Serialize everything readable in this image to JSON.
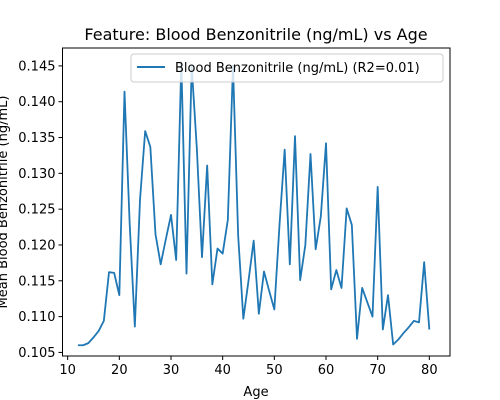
{
  "chart_data": {
    "type": "line",
    "title": "Feature: Blood Benzonitrile (ng/mL) vs Age",
    "xlabel": "Age",
    "ylabel": "Mean Blood Benzonitrile (ng/mL)",
    "xlim": [
      9,
      84
    ],
    "ylim": [
      0.1045,
      0.1475
    ],
    "xticks": [
      10,
      20,
      30,
      40,
      50,
      60,
      70,
      80
    ],
    "yticks": [
      0.105,
      0.11,
      0.115,
      0.12,
      0.125,
      0.13,
      0.135,
      0.14,
      0.145
    ],
    "ytick_labels": [
      "0.105",
      "0.110",
      "0.115",
      "0.120",
      "0.125",
      "0.130",
      "0.135",
      "0.140",
      "0.145"
    ],
    "grid": false,
    "legend_position": "top-right",
    "series": [
      {
        "name": "Blood Benzonitrile (ng/mL) (R2=0.01)",
        "color": "#1f77b4",
        "x": [
          12,
          13,
          14,
          15,
          16,
          17,
          18,
          19,
          20,
          21,
          22,
          23,
          24,
          25,
          26,
          27,
          28,
          29,
          30,
          31,
          32,
          33,
          34,
          35,
          36,
          37,
          38,
          39,
          40,
          41,
          42,
          43,
          44,
          45,
          46,
          47,
          48,
          49,
          50,
          51,
          52,
          53,
          54,
          55,
          56,
          57,
          58,
          59,
          60,
          61,
          62,
          63,
          64,
          65,
          66,
          67,
          68,
          69,
          70,
          71,
          72,
          73,
          74,
          75,
          76,
          77,
          78,
          79,
          80
        ],
        "y": [
          0.106,
          0.106,
          0.1063,
          0.1071,
          0.108,
          0.1094,
          0.1162,
          0.1161,
          0.113,
          0.1414,
          0.123,
          0.1086,
          0.1263,
          0.1359,
          0.1337,
          0.1215,
          0.1173,
          0.1208,
          0.1242,
          0.1179,
          0.1455,
          0.116,
          0.145,
          0.1335,
          0.1183,
          0.1311,
          0.1145,
          0.1195,
          0.1188,
          0.1235,
          0.145,
          0.1213,
          0.1097,
          0.115,
          0.1206,
          0.1104,
          0.1163,
          0.1136,
          0.111,
          0.1228,
          0.1333,
          0.1173,
          0.1352,
          0.1151,
          0.12,
          0.1327,
          0.1194,
          0.124,
          0.1342,
          0.1138,
          0.1165,
          0.114,
          0.1251,
          0.1228,
          0.1069,
          0.114,
          0.112,
          0.11,
          0.1281,
          0.1082,
          0.113,
          0.1061,
          0.1068,
          0.1077,
          0.1085,
          0.1094,
          0.1092,
          0.1176,
          0.1082
        ]
      }
    ]
  }
}
